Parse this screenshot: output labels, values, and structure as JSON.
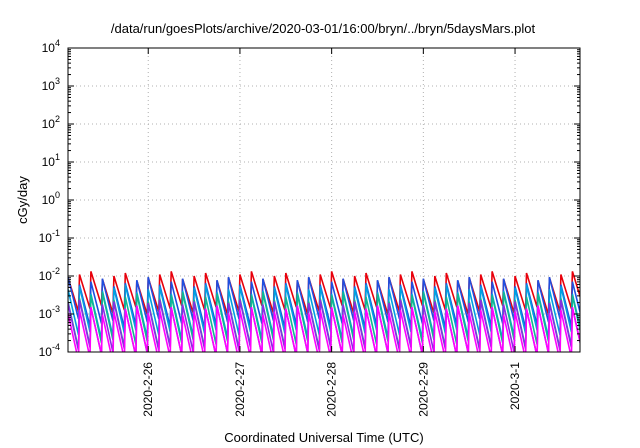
{
  "chart_data": {
    "type": "line",
    "title": "/data/run/goesPlots/archive/2020-03-01/16:00/bryn/../bryn/5daysMars.plot",
    "xlabel": "Coordinated Universal Time (UTC)",
    "ylabel": "cGy/day",
    "y_scale": "log",
    "ylim": [
      0.0001,
      10000
    ],
    "xlim": [
      "2020-02-25 03:00",
      "2020-03-01 17:00"
    ],
    "x_ticks": [
      "2020-2-26",
      "2020-2-27",
      "2020-2-28",
      "2020-2-29",
      "2020-3-1"
    ],
    "y_ticks": [
      {
        "mantissa": "10",
        "exp": "-4",
        "value": 0.0001
      },
      {
        "mantissa": "10",
        "exp": "-3",
        "value": 0.001
      },
      {
        "mantissa": "10",
        "exp": "-2",
        "value": 0.01
      },
      {
        "mantissa": "10",
        "exp": "-1",
        "value": 0.1
      },
      {
        "mantissa": "10",
        "exp": "0",
        "value": 1
      },
      {
        "mantissa": "10",
        "exp": "1",
        "value": 10
      },
      {
        "mantissa": "10",
        "exp": "2",
        "value": 100
      },
      {
        "mantissa": "10",
        "exp": "3",
        "value": 1000
      },
      {
        "mantissa": "10",
        "exp": "4",
        "value": 10000
      }
    ],
    "grid": true,
    "sawtooth_period_hours": 3,
    "series": [
      {
        "color": "#e8000b",
        "peak_log": -2.0,
        "trough_log": -2.9
      },
      {
        "color": "#1f4fe0",
        "peak_log": -2.15,
        "trough_log": -3.25
      },
      {
        "color": "#00a0e0",
        "peak_log": -2.35,
        "trough_log": -3.55
      },
      {
        "color": "#10b890",
        "peak_log": -2.55,
        "trough_log": -3.8
      },
      {
        "color": "#8a2be2",
        "peak_log": -2.75,
        "trough_log": -4.0
      },
      {
        "color": "#ff00ff",
        "peak_log": -2.9,
        "trough_log": -4.15
      }
    ]
  }
}
